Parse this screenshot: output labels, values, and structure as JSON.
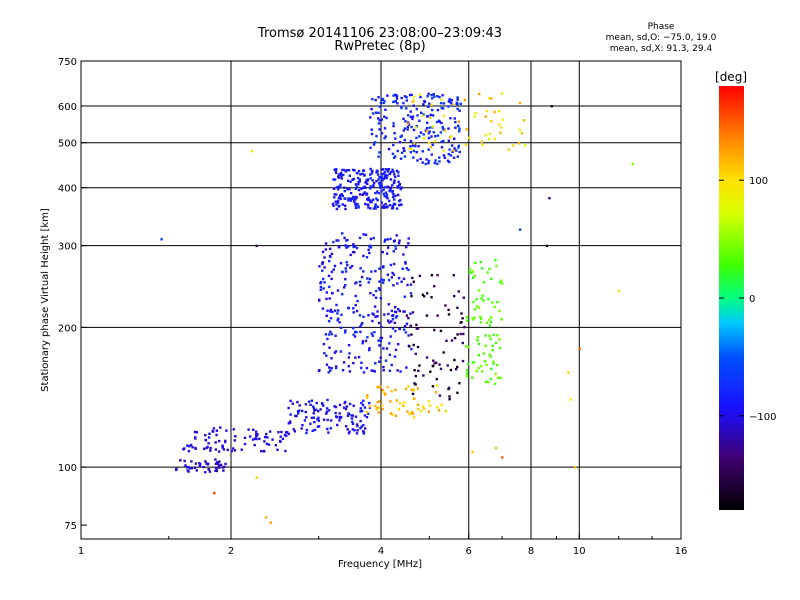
{
  "header": {
    "title": "Tromsø 20141106 23:08:00–23:09:43",
    "subtitle": "RwPretec (8p)"
  },
  "phase_info": {
    "heading": "Phase",
    "line1": "mean, sd,O: −75.0, 19.0",
    "line2": "mean, sd,X:  91.3, 29.4"
  },
  "colorbar": {
    "unit": "deg",
    "range": [
      -180,
      180
    ],
    "ticks": [
      {
        "value": 100,
        "label": "100"
      },
      {
        "value": 0,
        "label": "0"
      },
      {
        "value": -100,
        "label": "−100"
      }
    ]
  },
  "chart_data": {
    "type": "scatter",
    "title": "Tromsø 20141106 23:08:00–23:09:43",
    "subtitle": "RwPretec (8p)",
    "xlabel": "Frequency [MHz]",
    "ylabel": "Stationary phase Virtual Height [km]",
    "xscale": "log",
    "yscale": "log",
    "xlim": [
      1,
      16
    ],
    "ylim": [
      70,
      750
    ],
    "xticks": [
      {
        "value": 1,
        "label": "1"
      },
      {
        "value": 2,
        "label": "2"
      },
      {
        "value": 4,
        "label": "4"
      },
      {
        "value": 6,
        "label": "6"
      },
      {
        "value": 8,
        "label": "8"
      },
      {
        "value": 10,
        "label": "10"
      },
      {
        "value": 16,
        "label": "16"
      }
    ],
    "xgrid": [
      2,
      4,
      6,
      8,
      10
    ],
    "yticks": [
      {
        "value": 75,
        "label": "75"
      },
      {
        "value": 100,
        "label": "100"
      },
      {
        "value": 200,
        "label": "200"
      },
      {
        "value": 300,
        "label": "300"
      },
      {
        "value": 400,
        "label": "400"
      },
      {
        "value": 500,
        "label": "500"
      },
      {
        "value": 600,
        "label": "600"
      },
      {
        "value": 750,
        "label": "750"
      }
    ],
    "ygrid": [
      100,
      200,
      300,
      400,
      500,
      600
    ],
    "color_variable": "phase",
    "clusters": [
      {
        "x_range": [
          1.55,
          1.95
        ],
        "y_range": [
          97,
          104
        ],
        "phase": [
          -125,
          -95
        ],
        "n": 45
      },
      {
        "x_range": [
          1.6,
          2.6
        ],
        "y_range": [
          108,
          122
        ],
        "phase": [
          -115,
          -90
        ],
        "n": 90
      },
      {
        "x_range": [
          2.6,
          3.8
        ],
        "y_range": [
          118,
          140
        ],
        "phase": [
          -110,
          -80
        ],
        "n": 120
      },
      {
        "x_range": [
          3.0,
          4.6
        ],
        "y_range": [
          160,
          320
        ],
        "phase": [
          -110,
          -70
        ],
        "n": 300
      },
      {
        "x_range": [
          3.2,
          4.4
        ],
        "y_range": [
          360,
          440
        ],
        "phase": [
          -105,
          -75
        ],
        "n": 250
      },
      {
        "x_range": [
          3.8,
          5.8
        ],
        "y_range": [
          450,
          640
        ],
        "phase": [
          -100,
          -60
        ],
        "n": 220
      },
      {
        "x_range": [
          3.7,
          5.4
        ],
        "y_range": [
          128,
          150
        ],
        "phase": [
          95,
          130
        ],
        "n": 60
      },
      {
        "x_range": [
          4.5,
          5.9
        ],
        "y_range": [
          140,
          260
        ],
        "phase": [
          -175,
          -130
        ],
        "n": 80
      },
      {
        "x_range": [
          5.9,
          7.0
        ],
        "y_range": [
          150,
          280
        ],
        "phase": [
          20,
          45
        ],
        "n": 90
      },
      {
        "x_range": [
          4.5,
          7.8
        ],
        "y_range": [
          480,
          640
        ],
        "phase": [
          80,
          130
        ],
        "n": 60
      }
    ],
    "scattered_points": [
      {
        "x": 1.45,
        "y": 310,
        "phase": -60
      },
      {
        "x": 1.85,
        "y": 88,
        "phase": 160
      },
      {
        "x": 2.2,
        "y": 480,
        "phase": 100
      },
      {
        "x": 2.25,
        "y": 300,
        "phase": -150
      },
      {
        "x": 2.35,
        "y": 78,
        "phase": 120
      },
      {
        "x": 2.4,
        "y": 76,
        "phase": 130
      },
      {
        "x": 2.25,
        "y": 95,
        "phase": 110
      },
      {
        "x": 8.6,
        "y": 300,
        "phase": -160
      },
      {
        "x": 8.7,
        "y": 380,
        "phase": -130
      },
      {
        "x": 8.8,
        "y": 600,
        "phase": -160
      },
      {
        "x": 9.5,
        "y": 160,
        "phase": 110
      },
      {
        "x": 9.6,
        "y": 140,
        "phase": 100
      },
      {
        "x": 9.8,
        "y": 100,
        "phase": 120
      },
      {
        "x": 10.0,
        "y": 180,
        "phase": 150
      },
      {
        "x": 12.8,
        "y": 450,
        "phase": 50
      },
      {
        "x": 12.0,
        "y": 240,
        "phase": 95
      },
      {
        "x": 7.0,
        "y": 105,
        "phase": 150
      },
      {
        "x": 6.8,
        "y": 110,
        "phase": 120
      },
      {
        "x": 6.1,
        "y": 108,
        "phase": 110
      },
      {
        "x": 7.6,
        "y": 325,
        "phase": -60
      }
    ]
  }
}
